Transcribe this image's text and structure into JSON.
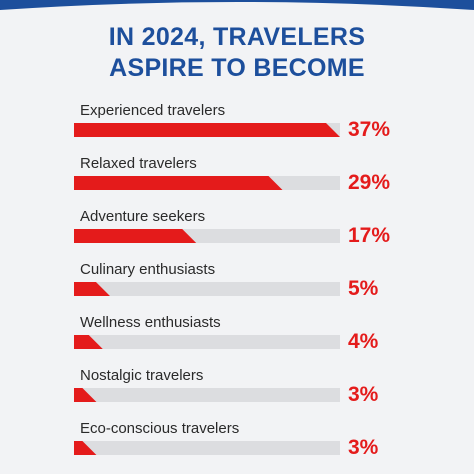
{
  "chart_data": {
    "type": "bar",
    "title": "IN 2024, TRAVELERS ASPIRE TO BECOME",
    "title_lines": [
      "IN 2024, TRAVELERS",
      "ASPIRE TO BECOME"
    ],
    "orientation": "horizontal",
    "categories": [
      "Experienced travelers",
      "Relaxed travelers",
      "Adventure seekers",
      "Culinary enthusiasts",
      "Wellness enthusiasts",
      "Nostalgic travelers",
      "Eco-conscious travelers"
    ],
    "values": [
      37,
      29,
      17,
      5,
      4,
      3,
      3
    ],
    "value_labels": [
      "37%",
      "29%",
      "17%",
      "5%",
      "4%",
      "3%",
      "3%"
    ],
    "xlim": [
      0,
      37
    ],
    "grid": false,
    "colors": {
      "bar": "#e41b1b",
      "track": "#dcdde0",
      "title": "#1d4f9c",
      "value_text": "#e41b1b",
      "header_arc": "#1d4f9c",
      "background": "#f2f3f5"
    }
  }
}
